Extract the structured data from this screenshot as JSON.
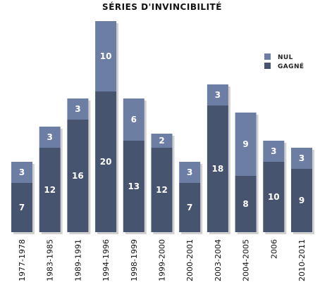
{
  "chart_data": {
    "type": "bar",
    "stacked": true,
    "title": "SÉRIES D'INVINCIBILITÉ",
    "categories": [
      "1977-1978",
      "1983-1985",
      "1989-1991",
      "1994-1996",
      "1998-1999",
      "1999-2000",
      "2000-2001",
      "2003-2004",
      "2004-2005",
      "2006",
      "2010-2011"
    ],
    "series": [
      {
        "name": "GAGNÉ",
        "values": [
          7,
          12,
          16,
          20,
          13,
          12,
          7,
          18,
          8,
          10,
          9
        ],
        "color": "#475470"
      },
      {
        "name": "NUL",
        "values": [
          3,
          3,
          3,
          10,
          6,
          2,
          3,
          3,
          9,
          3,
          3
        ],
        "color": "#6d7ea5"
      }
    ],
    "legend": {
      "position": "top-right",
      "entries": [
        "NUL",
        "GAGNÉ"
      ]
    },
    "xlabel": "",
    "ylabel": "",
    "ylim": [
      0,
      30
    ],
    "grid": false
  }
}
